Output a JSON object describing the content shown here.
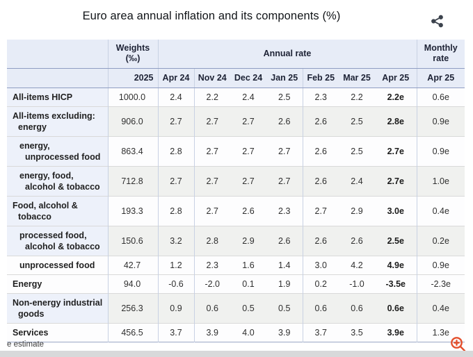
{
  "title": "Euro area annual inflation and its components (%)",
  "table": {
    "header": {
      "weights_label": "Weights",
      "weights_unit": "(‰)",
      "annual_label": "Annual rate",
      "monthly_label": "Monthly rate",
      "weights_year": "2025",
      "months": [
        "Apr 24",
        "Nov 24",
        "Dec 24",
        "Jan 25",
        "Feb 25",
        "Mar 25",
        "Apr 25"
      ],
      "monthly_month": "Apr 25"
    },
    "rows": [
      {
        "label": "All-items HICP",
        "indent": false,
        "weight": "1000.0",
        "values": [
          "2.4",
          "2.2",
          "2.4",
          "2.5",
          "2.3",
          "2.2",
          "2.2e"
        ],
        "monthly": "0.6e"
      },
      {
        "label": "All-items excluding: energy",
        "indent": false,
        "weight": "906.0",
        "values": [
          "2.7",
          "2.7",
          "2.7",
          "2.6",
          "2.6",
          "2.5",
          "2.8e"
        ],
        "monthly": "0.9e"
      },
      {
        "label": "energy, unprocessed food",
        "indent": true,
        "weight": "863.4",
        "values": [
          "2.8",
          "2.7",
          "2.7",
          "2.7",
          "2.6",
          "2.5",
          "2.7e"
        ],
        "monthly": "0.9e"
      },
      {
        "label": "energy, food, alcohol & tobacco",
        "indent": true,
        "weight": "712.8",
        "values": [
          "2.7",
          "2.7",
          "2.7",
          "2.7",
          "2.6",
          "2.4",
          "2.7e"
        ],
        "monthly": "1.0e"
      },
      {
        "label": "Food, alcohol & tobacco",
        "indent": false,
        "weight": "193.3",
        "values": [
          "2.8",
          "2.7",
          "2.6",
          "2.3",
          "2.7",
          "2.9",
          "3.0e"
        ],
        "monthly": "0.4e"
      },
      {
        "label": "processed food, alcohol & tobacco",
        "indent": true,
        "weight": "150.6",
        "values": [
          "3.2",
          "2.8",
          "2.9",
          "2.6",
          "2.6",
          "2.6",
          "2.5e"
        ],
        "monthly": "0.2e"
      },
      {
        "label": "unprocessed food",
        "indent": true,
        "weight": "42.7",
        "values": [
          "1.2",
          "2.3",
          "1.6",
          "1.4",
          "3.0",
          "4.2",
          "4.9e"
        ],
        "monthly": "0.9e"
      },
      {
        "label": "Energy",
        "indent": false,
        "weight": "94.0",
        "values": [
          "-0.6",
          "-2.0",
          "0.1",
          "1.9",
          "0.2",
          "-1.0",
          "-3.5e"
        ],
        "monthly": "-2.3e"
      },
      {
        "label": "Non-energy industrial goods",
        "indent": false,
        "weight": "256.3",
        "values": [
          "0.9",
          "0.6",
          "0.5",
          "0.5",
          "0.6",
          "0.6",
          "0.6e"
        ],
        "monthly": "0.4e"
      },
      {
        "label": "Services",
        "indent": false,
        "weight": "456.5",
        "values": [
          "3.7",
          "3.9",
          "4.0",
          "3.9",
          "3.7",
          "3.5",
          "3.9e"
        ],
        "monthly": "1.3e"
      }
    ]
  },
  "footnote": "e estimate",
  "colors": {
    "accent_line": "#8e9dc2",
    "header_bg": "#e7ecf7",
    "label_bg": "#edf1fa",
    "stripe_bg": "#f0f1ef",
    "zoom_icon": "#e4502d",
    "share_icon": "#3c434d"
  }
}
